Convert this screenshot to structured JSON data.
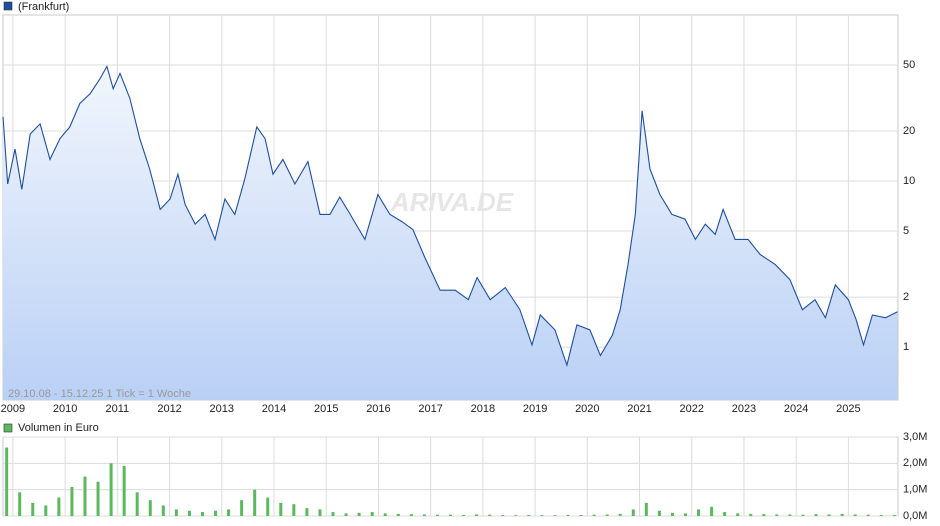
{
  "chart_data": [
    {
      "type": "line",
      "annotation": "29.10.08 - 15.12.25   1 Tick = 1 Woche",
      "watermark": "ARIVA.DE",
      "log_scale": true,
      "grid": true,
      "xlim": [
        2008.81,
        2025.95
      ],
      "xticks": [
        2009,
        2010,
        2011,
        2012,
        2013,
        2014,
        2015,
        2016,
        2017,
        2018,
        2019,
        2020,
        2021,
        2022,
        2023,
        2024,
        2025
      ],
      "ylim": [
        0.48,
        100
      ],
      "yticks": [
        1,
        2,
        5,
        10,
        20,
        50
      ],
      "x": [
        2008.81,
        2008.9,
        2009.04,
        2009.17,
        2009.33,
        2009.52,
        2009.71,
        2009.9,
        2010.09,
        2010.28,
        2010.48,
        2010.67,
        2010.8,
        2010.92,
        2011.05,
        2011.24,
        2011.43,
        2011.62,
        2011.82,
        2012.01,
        2012.16,
        2012.3,
        2012.49,
        2012.68,
        2012.87,
        2013.06,
        2013.25,
        2013.44,
        2013.67,
        2013.83,
        2013.98,
        2014.17,
        2014.4,
        2014.65,
        2014.88,
        2015.07,
        2015.26,
        2015.46,
        2015.74,
        2015.99,
        2016.22,
        2016.45,
        2016.66,
        2016.89,
        2017.18,
        2017.47,
        2017.72,
        2017.89,
        2018.14,
        2018.43,
        2018.71,
        2018.94,
        2019.1,
        2019.38,
        2019.61,
        2019.8,
        2020.05,
        2020.25,
        2020.48,
        2020.63,
        2020.78,
        2020.92,
        2021.05,
        2021.2,
        2021.39,
        2021.62,
        2021.87,
        2022.07,
        2022.26,
        2022.45,
        2022.6,
        2022.83,
        2023.08,
        2023.31,
        2023.6,
        2023.88,
        2024.12,
        2024.36,
        2024.56,
        2024.75,
        2025.0,
        2025.15,
        2025.29,
        2025.46,
        2025.71,
        2025.94
      ],
      "series": [
        {
          "name": "(Frankfurt)",
          "color": "#1d4f9e",
          "values": [
            24.4,
            9.6,
            15.6,
            8.9,
            19.2,
            22.1,
            13.5,
            18,
            21.2,
            29.3,
            33.6,
            41.4,
            49,
            36,
            44.5,
            31.4,
            18,
            11.8,
            6.75,
            7.8,
            11,
            7.2,
            5.5,
            6.3,
            4.45,
            7.8,
            6.3,
            10.3,
            21.2,
            18,
            11,
            13.5,
            9.6,
            13.1,
            6.3,
            6.3,
            8,
            6.3,
            4.45,
            8.3,
            6.3,
            5.7,
            5.1,
            3.46,
            2.2,
            2.2,
            1.93,
            2.62,
            1.93,
            2.28,
            1.68,
            1.03,
            1.56,
            1.27,
            0.78,
            1.36,
            1.27,
            0.89,
            1.18,
            1.68,
            3.14,
            6.3,
            26.5,
            11.8,
            8.3,
            6.3,
            5.9,
            4.45,
            5.5,
            4.77,
            6.75,
            4.45,
            4.45,
            3.61,
            3.14,
            2.55,
            1.68,
            1.93,
            1.5,
            2.37,
            1.93,
            1.46,
            1.03,
            1.56,
            1.5,
            1.63
          ]
        }
      ]
    },
    {
      "type": "bar",
      "xlim": [
        2008.81,
        2025.95
      ],
      "ylim": [
        0,
        3000000
      ],
      "yticks": [
        {
          "value": 0,
          "label": "0,0M"
        },
        {
          "value": 1000000,
          "label": "1,0M"
        },
        {
          "value": 2000000,
          "label": "2,0M"
        },
        {
          "value": 3000000,
          "label": "3,0M"
        }
      ],
      "x": [
        2008.88,
        2009.13,
        2009.38,
        2009.63,
        2009.88,
        2010.13,
        2010.38,
        2010.63,
        2010.88,
        2011.13,
        2011.38,
        2011.63,
        2011.88,
        2012.13,
        2012.38,
        2012.63,
        2012.88,
        2013.13,
        2013.38,
        2013.63,
        2013.88,
        2014.13,
        2014.38,
        2014.63,
        2014.88,
        2015.13,
        2015.38,
        2015.63,
        2015.88,
        2016.13,
        2016.38,
        2016.63,
        2016.88,
        2017.13,
        2017.38,
        2017.63,
        2017.88,
        2018.13,
        2018.38,
        2018.63,
        2018.88,
        2019.13,
        2019.38,
        2019.63,
        2019.88,
        2020.13,
        2020.38,
        2020.63,
        2020.88,
        2021.13,
        2021.38,
        2021.63,
        2021.88,
        2022.13,
        2022.38,
        2022.63,
        2022.88,
        2023.13,
        2023.38,
        2023.63,
        2023.88,
        2024.13,
        2024.38,
        2024.63,
        2024.88,
        2025.13,
        2025.38,
        2025.63,
        2025.88
      ],
      "series": [
        {
          "name": "Volumen in Euro",
          "color": "#5cb85c",
          "values": [
            2600000,
            900000,
            500000,
            400000,
            700000,
            1100000,
            1500000,
            1300000,
            2000000,
            1900000,
            900000,
            600000,
            400000,
            250000,
            200000,
            150000,
            200000,
            250000,
            600000,
            1000000,
            700000,
            500000,
            450000,
            300000,
            250000,
            150000,
            100000,
            120000,
            150000,
            100000,
            80000,
            70000,
            60000,
            50000,
            50000,
            40000,
            60000,
            50000,
            40000,
            30000,
            40000,
            30000,
            30000,
            40000,
            40000,
            50000,
            60000,
            80000,
            250000,
            500000,
            200000,
            120000,
            100000,
            250000,
            350000,
            150000,
            100000,
            80000,
            70000,
            60000,
            60000,
            50000,
            70000,
            60000,
            80000,
            60000,
            50000,
            40000,
            40000
          ]
        }
      ]
    }
  ]
}
